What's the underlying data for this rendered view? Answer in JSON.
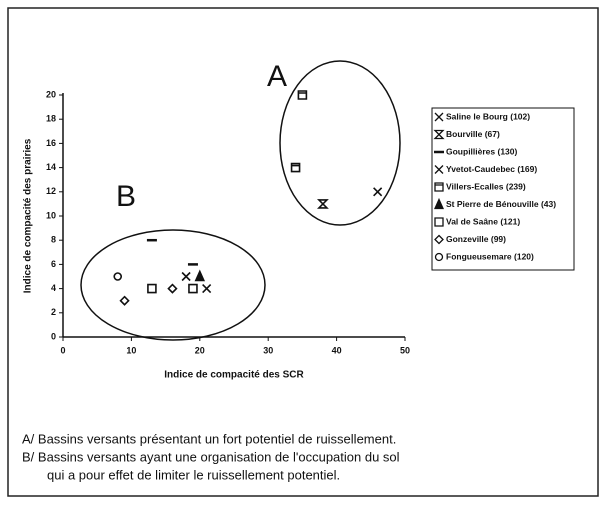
{
  "chart_data": {
    "type": "scatter",
    "xlabel": "Indice de compacité des SCR",
    "ylabel": "Indice de compacité des prairies",
    "xlim": [
      0,
      50
    ],
    "xticks": [
      0,
      10,
      20,
      30,
      40,
      50
    ],
    "ylim": [
      0,
      20
    ],
    "yticks": [
      0,
      2,
      4,
      6,
      8,
      10,
      12,
      14,
      16,
      18,
      20
    ],
    "annotations": [
      "A",
      "B"
    ],
    "caption": [
      "A/ Bassins versants présentant un fort potentiel de ruissellement.",
      "B/ Bassins versants ayant une organisation de l'occupation du sol",
      "qui a pour effet de limiter le ruissellement potentiel."
    ],
    "series": [
      {
        "name": "Saline le Bourg (102)",
        "marker": "x",
        "x": [
          46,
          21
        ],
        "y": [
          12,
          4
        ]
      },
      {
        "name": "Bourville (67)",
        "marker": "hourglass",
        "x": [
          38
        ],
        "y": [
          11
        ]
      },
      {
        "name": "Goupillières (130)",
        "marker": "dash",
        "x": [
          13,
          19
        ],
        "y": [
          8,
          6
        ]
      },
      {
        "name": "Yvetot-Caudebec (169)",
        "marker": "x",
        "x": [
          18
        ],
        "y": [
          5
        ]
      },
      {
        "name": "Villers-Ecalles (239)",
        "marker": "square2",
        "x": [
          35,
          34
        ],
        "y": [
          20,
          14
        ]
      },
      {
        "name": "St Pierre de Bénouville (43)",
        "marker": "triangle",
        "x": [
          20
        ],
        "y": [
          5
        ]
      },
      {
        "name": "Val de Saâne (121)",
        "marker": "square",
        "x": [
          13,
          19
        ],
        "y": [
          4,
          4
        ]
      },
      {
        "name": "Gonzeville (99)",
        "marker": "diamond",
        "x": [
          16,
          9
        ],
        "y": [
          4,
          3
        ]
      },
      {
        "name": "Fongueusemare (120)",
        "marker": "circle",
        "x": [
          8
        ],
        "y": [
          5
        ]
      }
    ]
  }
}
